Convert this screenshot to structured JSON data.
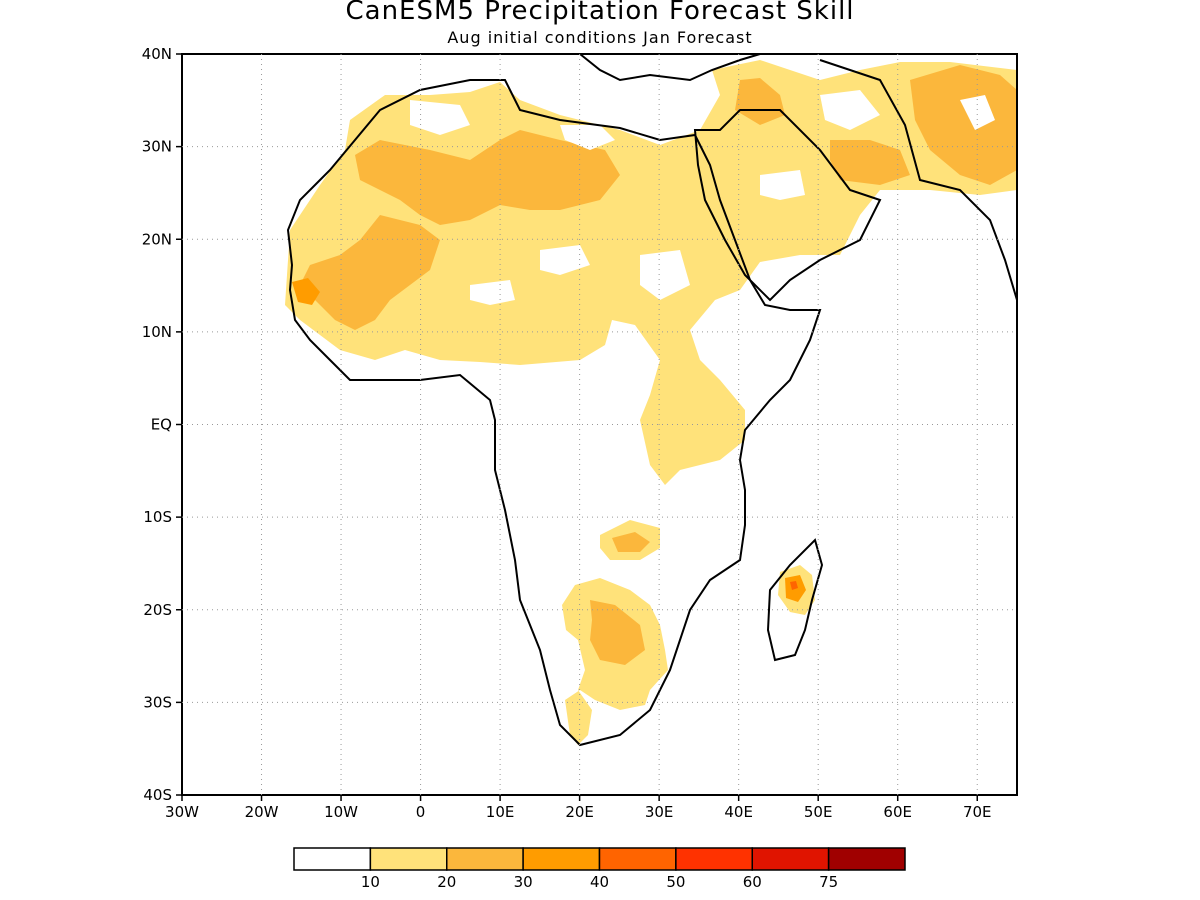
{
  "title": "CanESM5 Precipitation Forecast Skill",
  "subtitle": "Aug initial conditions  Jan Forecast",
  "map": {
    "lon_range": [
      -30,
      75
    ],
    "lat_range": [
      -40,
      40
    ],
    "grid": "dotted",
    "lat_ticks": [
      {
        "value": 40,
        "label": "40N"
      },
      {
        "value": 30,
        "label": "30N"
      },
      {
        "value": 20,
        "label": "20N"
      },
      {
        "value": 10,
        "label": "10N"
      },
      {
        "value": 0,
        "label": "EQ"
      },
      {
        "value": -10,
        "label": "10S"
      },
      {
        "value": -20,
        "label": "20S"
      },
      {
        "value": -30,
        "label": "30S"
      },
      {
        "value": -40,
        "label": "40S"
      }
    ],
    "lon_ticks": [
      {
        "value": -30,
        "label": "30W"
      },
      {
        "value": -20,
        "label": "20W"
      },
      {
        "value": -10,
        "label": "10W"
      },
      {
        "value": 0,
        "label": "0"
      },
      {
        "value": 10,
        "label": "10E"
      },
      {
        "value": 20,
        "label": "20E"
      },
      {
        "value": 30,
        "label": "30E"
      },
      {
        "value": 40,
        "label": "40E"
      },
      {
        "value": 50,
        "label": "50E"
      },
      {
        "value": 60,
        "label": "60E"
      },
      {
        "value": 70,
        "label": "70E"
      }
    ]
  },
  "legend": {
    "colors": [
      "#ffffff",
      "#ffe27a",
      "#fbb73c",
      "#ff9c00",
      "#ff6400",
      "#ff3200",
      "#e01400",
      "#a00000"
    ],
    "labels": [
      "10",
      "20",
      "30",
      "40",
      "50",
      "60",
      "75"
    ]
  }
}
